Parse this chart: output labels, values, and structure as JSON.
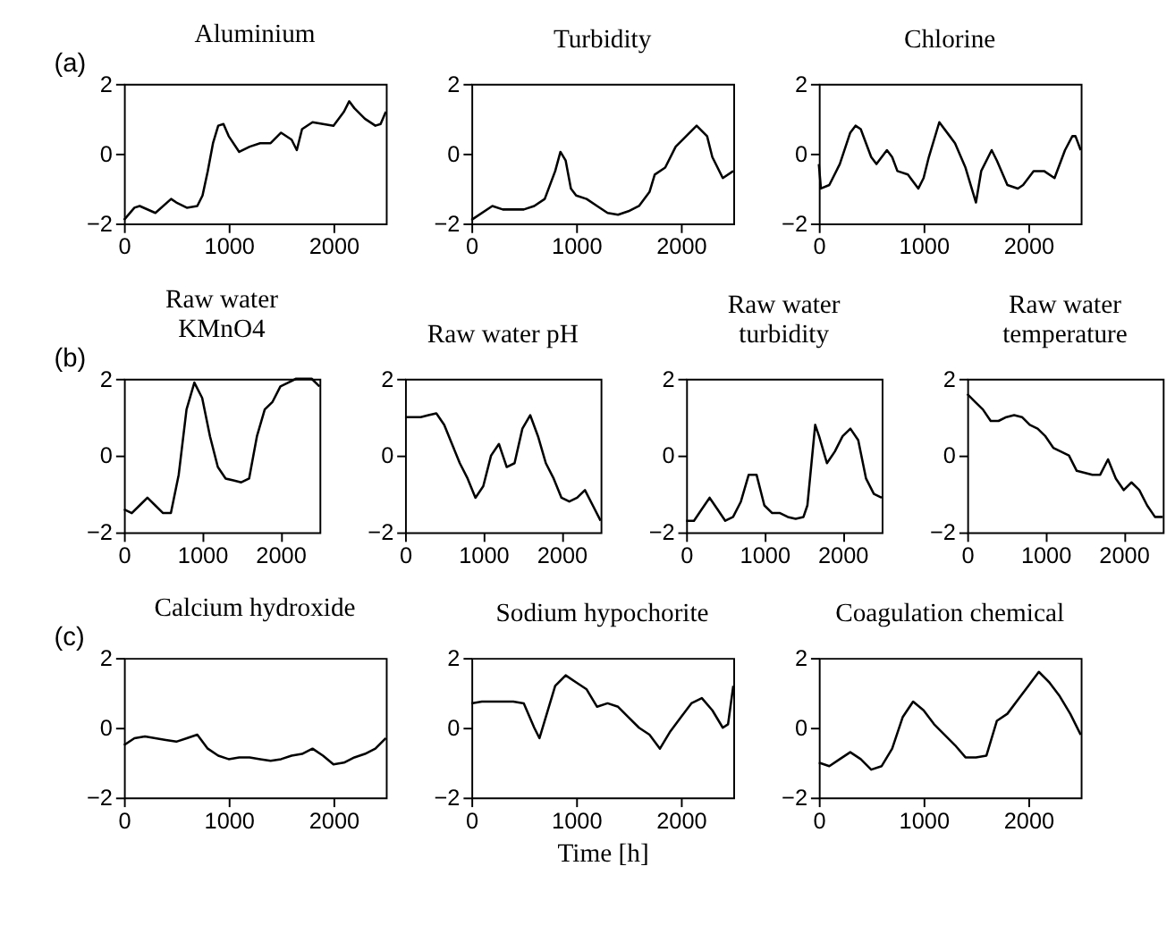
{
  "chart_data": [
    {
      "type": "line",
      "title": "Aluminium",
      "annotations": [
        "(a)"
      ],
      "xlim": [
        0,
        2500
      ],
      "ylim": [
        -2,
        2
      ],
      "xticks": [
        0,
        1000,
        2000
      ],
      "yticks": [
        -2,
        0,
        2
      ],
      "grid": false,
      "x": [
        0,
        100,
        150,
        300,
        450,
        500,
        600,
        700,
        750,
        800,
        850,
        900,
        950,
        1000,
        1100,
        1200,
        1300,
        1400,
        1500,
        1600,
        1650,
        1700,
        1800,
        1900,
        2000,
        2100,
        2150,
        2200,
        2300,
        2400,
        2450,
        2500
      ],
      "series": [
        {
          "color": "#000000",
          "values": [
            -1.9,
            -1.55,
            -1.5,
            -1.7,
            -1.3,
            -1.4,
            -1.55,
            -1.5,
            -1.2,
            -0.5,
            0.3,
            0.8,
            0.85,
            0.5,
            0.05,
            0.2,
            0.3,
            0.3,
            0.6,
            0.4,
            0.1,
            0.7,
            0.9,
            0.85,
            0.8,
            1.2,
            1.5,
            1.3,
            1.0,
            0.8,
            0.85,
            1.2
          ]
        }
      ]
    },
    {
      "type": "line",
      "title": "Turbidity",
      "xlim": [
        0,
        2500
      ],
      "ylim": [
        -2,
        2
      ],
      "xticks": [
        0,
        1000,
        2000
      ],
      "yticks": [
        -2,
        0,
        2
      ],
      "grid": false,
      "x": [
        0,
        200,
        300,
        500,
        600,
        700,
        800,
        850,
        900,
        950,
        1000,
        1100,
        1200,
        1300,
        1400,
        1500,
        1600,
        1700,
        1750,
        1850,
        1950,
        2050,
        2150,
        2250,
        2300,
        2400,
        2500
      ],
      "series": [
        {
          "color": "#000000",
          "values": [
            -1.9,
            -1.5,
            -1.6,
            -1.6,
            -1.5,
            -1.3,
            -0.5,
            0.05,
            -0.2,
            -1.0,
            -1.2,
            -1.3,
            -1.5,
            -1.7,
            -1.75,
            -1.65,
            -1.5,
            -1.1,
            -0.6,
            -0.4,
            0.2,
            0.5,
            0.8,
            0.5,
            -0.1,
            -0.7,
            -0.5
          ]
        }
      ]
    },
    {
      "type": "line",
      "title": "Chlorine",
      "xlim": [
        0,
        2500
      ],
      "ylim": [
        -2,
        2
      ],
      "xticks": [
        0,
        1000,
        2000
      ],
      "yticks": [
        -2,
        0,
        2
      ],
      "grid": false,
      "x": [
        0,
        20,
        100,
        200,
        300,
        350,
        400,
        500,
        550,
        650,
        700,
        750,
        850,
        950,
        1000,
        1050,
        1150,
        1250,
        1300,
        1400,
        1500,
        1550,
        1650,
        1700,
        1800,
        1900,
        1950,
        2050,
        2150,
        2250,
        2350,
        2420,
        2450,
        2500
      ],
      "series": [
        {
          "color": "#000000",
          "values": [
            -0.3,
            -1.0,
            -0.9,
            -0.3,
            0.6,
            0.8,
            0.7,
            -0.1,
            -0.3,
            0.1,
            -0.1,
            -0.5,
            -0.6,
            -1.0,
            -0.7,
            -0.1,
            0.9,
            0.5,
            0.3,
            -0.4,
            -1.4,
            -0.5,
            0.1,
            -0.2,
            -0.9,
            -1.0,
            -0.9,
            -0.5,
            -0.5,
            -0.7,
            0.1,
            0.5,
            0.5,
            0.1
          ]
        }
      ]
    },
    {
      "type": "line",
      "title": "Raw water\nKMnO4",
      "annotations": [
        "(b)"
      ],
      "xlim": [
        0,
        2500
      ],
      "ylim": [
        -2,
        2
      ],
      "xticks": [
        0,
        1000,
        2000
      ],
      "yticks": [
        -2,
        0,
        2
      ],
      "grid": false,
      "x": [
        0,
        100,
        200,
        300,
        400,
        500,
        600,
        700,
        800,
        900,
        1000,
        1100,
        1200,
        1300,
        1400,
        1500,
        1600,
        1700,
        1800,
        1900,
        2000,
        2100,
        2200,
        2300,
        2400,
        2500
      ],
      "series": [
        {
          "color": "#000000",
          "values": [
            -1.4,
            -1.5,
            -1.3,
            -1.1,
            -1.3,
            -1.5,
            -1.5,
            -0.5,
            1.2,
            1.9,
            1.5,
            0.5,
            -0.3,
            -0.6,
            -0.65,
            -0.7,
            -0.6,
            0.5,
            1.2,
            1.4,
            1.8,
            1.9,
            2.0,
            2.0,
            2.0,
            1.8
          ]
        }
      ]
    },
    {
      "type": "line",
      "title": "Raw water pH",
      "xlim": [
        0,
        2500
      ],
      "ylim": [
        -2,
        2
      ],
      "xticks": [
        0,
        1000,
        2000
      ],
      "yticks": [
        -2,
        0,
        2
      ],
      "grid": false,
      "x": [
        0,
        100,
        200,
        300,
        400,
        500,
        600,
        700,
        800,
        900,
        1000,
        1100,
        1200,
        1300,
        1400,
        1500,
        1600,
        1700,
        1800,
        1900,
        2000,
        2100,
        2200,
        2300,
        2400,
        2500
      ],
      "series": [
        {
          "color": "#000000",
          "values": [
            1.0,
            1.0,
            1.0,
            1.05,
            1.1,
            0.8,
            0.3,
            -0.2,
            -0.6,
            -1.1,
            -0.8,
            0.0,
            0.3,
            -0.3,
            -0.2,
            0.7,
            1.05,
            0.5,
            -0.2,
            -0.6,
            -1.1,
            -1.2,
            -1.1,
            -0.9,
            -1.3,
            -1.7
          ]
        }
      ]
    },
    {
      "type": "line",
      "title": "Raw water\nturbidity",
      "xlim": [
        0,
        2500
      ],
      "ylim": [
        -2,
        2
      ],
      "xticks": [
        0,
        1000,
        2000
      ],
      "yticks": [
        -2,
        0,
        2
      ],
      "grid": false,
      "x": [
        0,
        100,
        200,
        300,
        400,
        500,
        600,
        700,
        800,
        900,
        1000,
        1100,
        1200,
        1300,
        1400,
        1500,
        1550,
        1650,
        1700,
        1800,
        1900,
        2000,
        2100,
        2200,
        2300,
        2400,
        2500
      ],
      "series": [
        {
          "color": "#000000",
          "values": [
            -1.7,
            -1.7,
            -1.4,
            -1.1,
            -1.4,
            -1.7,
            -1.6,
            -1.2,
            -0.5,
            -0.5,
            -1.3,
            -1.5,
            -1.5,
            -1.6,
            -1.65,
            -1.6,
            -1.3,
            0.8,
            0.5,
            -0.2,
            0.1,
            0.5,
            0.7,
            0.4,
            -0.6,
            -1.0,
            -1.1
          ]
        }
      ]
    },
    {
      "type": "line",
      "title": "Raw water\ntemperature",
      "xlim": [
        0,
        2500
      ],
      "ylim": [
        -2,
        2
      ],
      "xticks": [
        0,
        1000,
        2000
      ],
      "yticks": [
        -2,
        0,
        2
      ],
      "grid": false,
      "x": [
        0,
        100,
        200,
        300,
        400,
        500,
        600,
        700,
        800,
        900,
        1000,
        1100,
        1200,
        1300,
        1400,
        1500,
        1600,
        1700,
        1800,
        1900,
        2000,
        2100,
        2200,
        2300,
        2400,
        2500
      ],
      "series": [
        {
          "color": "#000000",
          "values": [
            1.6,
            1.4,
            1.2,
            0.9,
            0.9,
            1.0,
            1.05,
            1.0,
            0.8,
            0.7,
            0.5,
            0.2,
            0.1,
            0.0,
            -0.4,
            -0.45,
            -0.5,
            -0.5,
            -0.1,
            -0.6,
            -0.9,
            -0.7,
            -0.9,
            -1.3,
            -1.6,
            -1.6
          ]
        }
      ]
    },
    {
      "type": "line",
      "title": "Calcium hydroxide",
      "annotations": [
        "(c)"
      ],
      "xlim": [
        0,
        2500
      ],
      "ylim": [
        -2,
        2
      ],
      "xticks": [
        0,
        1000,
        2000
      ],
      "yticks": [
        -2,
        0,
        2
      ],
      "grid": false,
      "x": [
        0,
        100,
        200,
        300,
        400,
        500,
        600,
        700,
        800,
        900,
        1000,
        1100,
        1200,
        1300,
        1400,
        1500,
        1600,
        1700,
        1800,
        1900,
        2000,
        2100,
        2200,
        2300,
        2400,
        2500
      ],
      "series": [
        {
          "color": "#000000",
          "values": [
            -0.5,
            -0.3,
            -0.25,
            -0.3,
            -0.35,
            -0.4,
            -0.3,
            -0.2,
            -0.6,
            -0.8,
            -0.9,
            -0.85,
            -0.85,
            -0.9,
            -0.95,
            -0.9,
            -0.8,
            -0.75,
            -0.6,
            -0.8,
            -1.05,
            -1.0,
            -0.85,
            -0.75,
            -0.6,
            -0.3
          ]
        }
      ]
    },
    {
      "type": "line",
      "title": "Sodium hypochorite",
      "xlabel": "Time [h]",
      "xlim": [
        0,
        2500
      ],
      "ylim": [
        -2,
        2
      ],
      "xticks": [
        0,
        1000,
        2000
      ],
      "yticks": [
        -2,
        0,
        2
      ],
      "grid": false,
      "x": [
        0,
        100,
        200,
        300,
        400,
        500,
        600,
        650,
        700,
        800,
        900,
        1000,
        1100,
        1200,
        1300,
        1400,
        1500,
        1600,
        1700,
        1800,
        1900,
        2000,
        2100,
        2200,
        2300,
        2400,
        2450,
        2500
      ],
      "series": [
        {
          "color": "#000000",
          "values": [
            0.7,
            0.75,
            0.75,
            0.75,
            0.75,
            0.7,
            0.0,
            -0.3,
            0.2,
            1.2,
            1.5,
            1.3,
            1.1,
            0.6,
            0.7,
            0.6,
            0.3,
            0.0,
            -0.2,
            -0.6,
            -0.1,
            0.3,
            0.7,
            0.85,
            0.5,
            0.0,
            0.1,
            1.2
          ]
        }
      ]
    },
    {
      "type": "line",
      "title": "Coagulation chemical",
      "xlim": [
        0,
        2500
      ],
      "ylim": [
        -2,
        2
      ],
      "xticks": [
        0,
        1000,
        2000
      ],
      "yticks": [
        -2,
        0,
        2
      ],
      "grid": false,
      "x": [
        0,
        100,
        200,
        300,
        400,
        500,
        600,
        700,
        800,
        900,
        1000,
        1100,
        1200,
        1300,
        1400,
        1500,
        1600,
        1700,
        1800,
        1900,
        2000,
        2100,
        2200,
        2300,
        2400,
        2500
      ],
      "series": [
        {
          "color": "#000000",
          "values": [
            -1.0,
            -1.1,
            -0.9,
            -0.7,
            -0.9,
            -1.2,
            -1.1,
            -0.6,
            0.3,
            0.75,
            0.5,
            0.1,
            -0.2,
            -0.5,
            -0.85,
            -0.85,
            -0.8,
            0.2,
            0.4,
            0.8,
            1.2,
            1.6,
            1.3,
            0.9,
            0.4,
            -0.2
          ]
        }
      ]
    }
  ]
}
